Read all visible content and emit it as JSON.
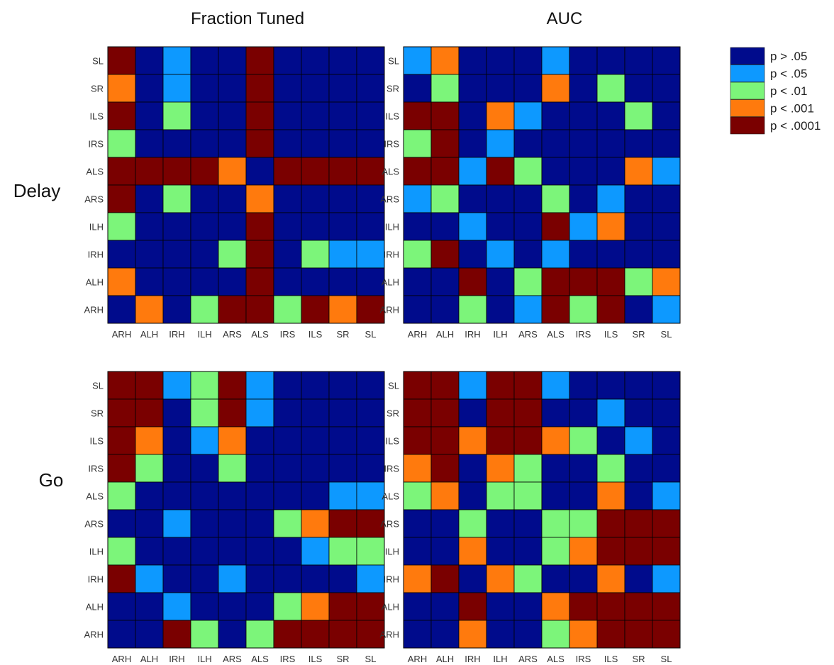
{
  "column_titles": [
    "Fraction Tuned",
    "AUC"
  ],
  "row_titles": [
    "Delay",
    "Go"
  ],
  "legend": [
    {
      "level": 0,
      "label": "p > .05",
      "color": "#000b8c"
    },
    {
      "level": 1,
      "label": "p < .05",
      "color": "#0d99ff"
    },
    {
      "level": 2,
      "label": "p < .01",
      "color": "#7cf57a"
    },
    {
      "level": 3,
      "label": "p < .001",
      "color": "#ff7a0d"
    },
    {
      "level": 4,
      "label": "p < .0001",
      "color": "#7a0000"
    }
  ],
  "chart_data": [
    {
      "type": "heatmap",
      "title": "Fraction Tuned",
      "row_label": "Delay",
      "x_labels": [
        "ARH",
        "ALH",
        "IRH",
        "ILH",
        "ARS",
        "ALS",
        "IRS",
        "ILS",
        "SR",
        "SL"
      ],
      "y_labels": [
        "SL",
        "SR",
        "ILS",
        "IRS",
        "ALS",
        "ARS",
        "ILH",
        "IRH",
        "ALH",
        "ARH"
      ],
      "values": [
        [
          4,
          0,
          1,
          0,
          0,
          4,
          0,
          0,
          0,
          0
        ],
        [
          3,
          0,
          1,
          0,
          0,
          4,
          0,
          0,
          0,
          0
        ],
        [
          4,
          0,
          2,
          0,
          0,
          4,
          0,
          0,
          0,
          0
        ],
        [
          2,
          0,
          0,
          0,
          0,
          4,
          0,
          0,
          0,
          0
        ],
        [
          4,
          4,
          4,
          4,
          3,
          0,
          4,
          4,
          4,
          4
        ],
        [
          4,
          0,
          2,
          0,
          0,
          3,
          0,
          0,
          0,
          0
        ],
        [
          2,
          0,
          0,
          0,
          0,
          4,
          0,
          0,
          0,
          0
        ],
        [
          0,
          0,
          0,
          0,
          2,
          4,
          0,
          2,
          1,
          1
        ],
        [
          3,
          0,
          0,
          0,
          0,
          4,
          0,
          0,
          0,
          0
        ],
        [
          0,
          3,
          0,
          2,
          4,
          4,
          2,
          4,
          3,
          4
        ]
      ]
    },
    {
      "type": "heatmap",
      "title": "AUC",
      "row_label": "Delay",
      "x_labels": [
        "ARH",
        "ALH",
        "IRH",
        "ILH",
        "ARS",
        "ALS",
        "IRS",
        "ILS",
        "SR",
        "SL"
      ],
      "y_labels": [
        "SL",
        "SR",
        "ILS",
        "IRS",
        "ALS",
        "ARS",
        "ILH",
        "IRH",
        "ALH",
        "ARH"
      ],
      "values": [
        [
          1,
          3,
          0,
          0,
          0,
          1,
          0,
          0,
          0,
          0
        ],
        [
          0,
          2,
          0,
          0,
          0,
          3,
          0,
          2,
          0,
          0
        ],
        [
          4,
          4,
          0,
          3,
          1,
          0,
          0,
          0,
          2,
          0
        ],
        [
          2,
          4,
          0,
          1,
          0,
          0,
          0,
          0,
          0,
          0
        ],
        [
          4,
          4,
          1,
          4,
          2,
          0,
          0,
          0,
          3,
          1
        ],
        [
          1,
          2,
          0,
          0,
          0,
          2,
          0,
          1,
          0,
          0
        ],
        [
          0,
          0,
          1,
          0,
          0,
          4,
          1,
          3,
          0,
          0
        ],
        [
          2,
          4,
          0,
          1,
          0,
          1,
          0,
          0,
          0,
          0
        ],
        [
          0,
          0,
          4,
          0,
          2,
          4,
          4,
          4,
          2,
          3
        ],
        [
          0,
          0,
          2,
          0,
          1,
          4,
          2,
          4,
          0,
          1
        ]
      ]
    },
    {
      "type": "heatmap",
      "title": "Fraction Tuned",
      "row_label": "Go",
      "x_labels": [
        "ARH",
        "ALH",
        "IRH",
        "ILH",
        "ARS",
        "ALS",
        "IRS",
        "ILS",
        "SR",
        "SL"
      ],
      "y_labels": [
        "SL",
        "SR",
        "ILS",
        "IRS",
        "ALS",
        "ARS",
        "ILH",
        "IRH",
        "ALH",
        "ARH"
      ],
      "values": [
        [
          4,
          4,
          1,
          2,
          4,
          1,
          0,
          0,
          0,
          0
        ],
        [
          4,
          4,
          0,
          2,
          4,
          1,
          0,
          0,
          0,
          0
        ],
        [
          4,
          3,
          0,
          1,
          3,
          0,
          0,
          0,
          0,
          0
        ],
        [
          4,
          2,
          0,
          0,
          2,
          0,
          0,
          0,
          0,
          0
        ],
        [
          2,
          0,
          0,
          0,
          0,
          0,
          0,
          0,
          1,
          1
        ],
        [
          0,
          0,
          1,
          0,
          0,
          0,
          2,
          3,
          4,
          4
        ],
        [
          2,
          0,
          0,
          0,
          0,
          0,
          0,
          1,
          2,
          2
        ],
        [
          4,
          1,
          0,
          0,
          1,
          0,
          0,
          0,
          0,
          1
        ],
        [
          0,
          0,
          1,
          0,
          0,
          0,
          2,
          3,
          4,
          4
        ],
        [
          0,
          0,
          4,
          2,
          0,
          2,
          4,
          4,
          4,
          4
        ]
      ]
    },
    {
      "type": "heatmap",
      "title": "AUC",
      "row_label": "Go",
      "x_labels": [
        "ARH",
        "ALH",
        "IRH",
        "ILH",
        "ARS",
        "ALS",
        "IRS",
        "ILS",
        "SR",
        "SL"
      ],
      "y_labels": [
        "SL",
        "SR",
        "ILS",
        "IRS",
        "ALS",
        "ARS",
        "ILH",
        "IRH",
        "ALH",
        "ARH"
      ],
      "values": [
        [
          4,
          4,
          1,
          4,
          4,
          1,
          0,
          0,
          0,
          0
        ],
        [
          4,
          4,
          0,
          4,
          4,
          0,
          0,
          1,
          0,
          0
        ],
        [
          4,
          4,
          3,
          4,
          4,
          3,
          2,
          0,
          1,
          0
        ],
        [
          3,
          4,
          0,
          3,
          2,
          0,
          0,
          2,
          0,
          0
        ],
        [
          2,
          3,
          0,
          2,
          2,
          0,
          0,
          3,
          0,
          1
        ],
        [
          0,
          0,
          2,
          0,
          0,
          2,
          2,
          4,
          4,
          4
        ],
        [
          0,
          0,
          3,
          0,
          0,
          2,
          3,
          4,
          4,
          4
        ],
        [
          3,
          4,
          0,
          3,
          2,
          0,
          0,
          3,
          0,
          1
        ],
        [
          0,
          0,
          4,
          0,
          0,
          3,
          4,
          4,
          4,
          4
        ],
        [
          0,
          0,
          3,
          0,
          0,
          2,
          3,
          4,
          4,
          4
        ]
      ]
    }
  ]
}
